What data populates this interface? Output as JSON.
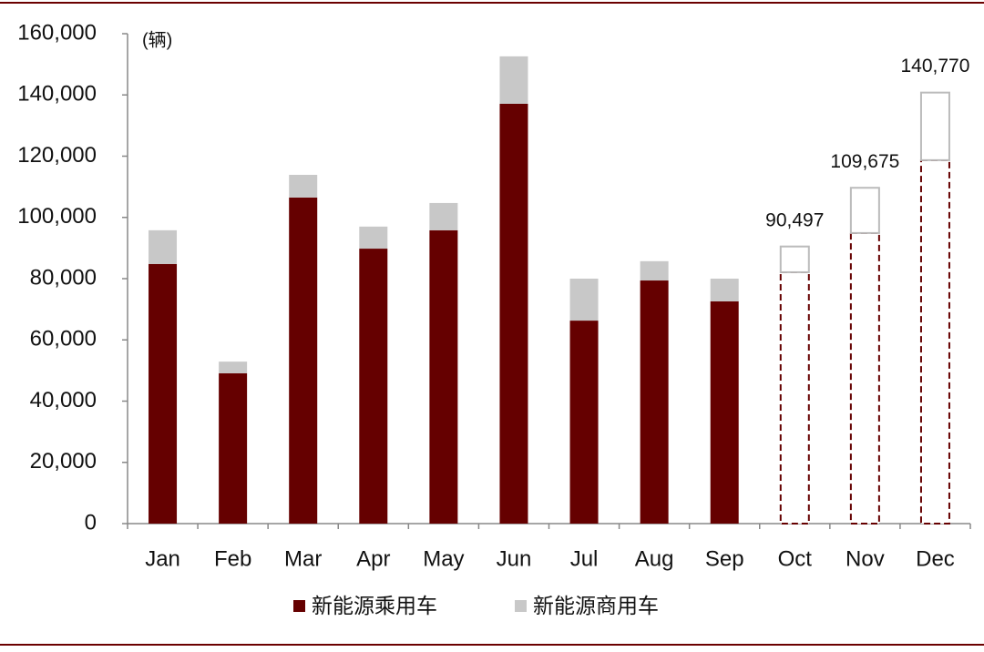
{
  "chart_data": {
    "type": "stacked-bar",
    "unit_label": "(辆)",
    "categories": [
      "Jan",
      "Feb",
      "Mar",
      "Apr",
      "May",
      "Jun",
      "Jul",
      "Aug",
      "Sep",
      "Oct",
      "Nov",
      "Dec"
    ],
    "series": [
      {
        "name": "新能源乘用车",
        "color": "#650000",
        "values": [
          84800,
          49100,
          106500,
          89800,
          95800,
          137100,
          66300,
          79400,
          72600,
          82100,
          94900,
          118700
        ]
      },
      {
        "name": "新能源商用车",
        "color": "#c8c8c8",
        "values": [
          11000,
          3800,
          7400,
          7200,
          8900,
          15500,
          13700,
          6300,
          7400,
          8397,
          14775,
          22070
        ]
      }
    ],
    "forecast": [
      false,
      false,
      false,
      false,
      false,
      false,
      false,
      false,
      false,
      true,
      true,
      true
    ],
    "totals": {
      "values": [
        null,
        null,
        null,
        null,
        null,
        null,
        null,
        null,
        null,
        90497,
        109675,
        140770
      ],
      "value_labels": [
        null,
        null,
        null,
        null,
        null,
        null,
        null,
        null,
        null,
        "90,497",
        "109,675",
        "140,770"
      ]
    },
    "ylim": [
      0,
      160000
    ],
    "yticks": [
      0,
      {
        "value": 20000,
        "label": "20,000"
      },
      {
        "value": 40000,
        "label": "40,000"
      },
      {
        "value": 60000,
        "label": "60,000"
      },
      {
        "value": 80000,
        "label": "80,000"
      },
      {
        "value": 100000,
        "label": "100,000"
      },
      {
        "value": 120000,
        "label": "120,000"
      },
      {
        "value": 140000,
        "label": "140,000"
      },
      {
        "value": 160000,
        "label": "160,000"
      }
    ],
    "grid": false
  }
}
